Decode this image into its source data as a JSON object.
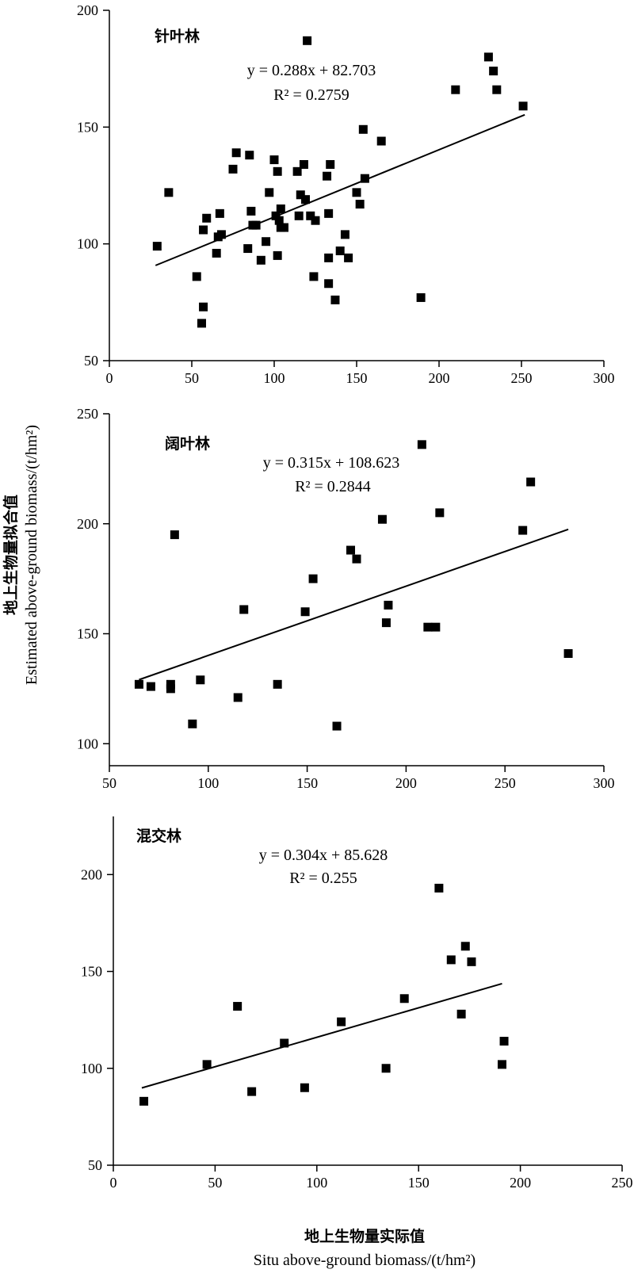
{
  "figure": {
    "ylabel_cn": "地上生物量拟合值",
    "ylabel_en": "Estimated  above-ground biomass/(t/hm²)",
    "xlabel_cn": "地上生物量实际值",
    "xlabel_en": "Situ  above-ground biomass/(t/hm²)"
  },
  "chart_data": [
    {
      "type": "scatter",
      "title": "针叶林",
      "equation": "y = 0.288x + 82.703",
      "r2": "R² = 0.2759",
      "xlim": [
        0,
        300
      ],
      "ylim": [
        50,
        200
      ],
      "xticks": [
        0,
        50,
        100,
        150,
        200,
        250,
        300
      ],
      "yticks": [
        50,
        100,
        150,
        200
      ],
      "xtick_labels": [
        "0",
        "50",
        "100",
        "150",
        "200",
        "250",
        "300"
      ],
      "ytick_labels": [
        "50",
        "100",
        "150",
        "200"
      ],
      "trend": {
        "slope": 0.288,
        "intercept": 82.703,
        "x_range": [
          28,
          252
        ]
      },
      "points": [
        [
          29,
          99
        ],
        [
          36,
          122
        ],
        [
          56,
          66
        ],
        [
          57,
          73
        ],
        [
          57,
          106
        ],
        [
          59,
          111
        ],
        [
          53,
          86
        ],
        [
          65,
          96
        ],
        [
          66,
          103
        ],
        [
          67,
          113
        ],
        [
          68,
          104
        ],
        [
          75,
          132
        ],
        [
          77,
          139
        ],
        [
          84,
          98
        ],
        [
          85,
          138
        ],
        [
          86,
          114
        ],
        [
          87,
          108
        ],
        [
          89,
          108
        ],
        [
          92,
          93
        ],
        [
          95,
          101
        ],
        [
          97,
          122
        ],
        [
          100,
          136
        ],
        [
          101,
          112
        ],
        [
          102,
          131
        ],
        [
          102,
          95
        ],
        [
          103,
          110
        ],
        [
          104,
          115
        ],
        [
          104,
          107
        ],
        [
          106,
          107
        ],
        [
          114,
          131
        ],
        [
          115,
          112
        ],
        [
          116,
          121
        ],
        [
          118,
          134
        ],
        [
          119,
          119
        ],
        [
          120,
          187
        ],
        [
          122,
          112
        ],
        [
          124,
          86
        ],
        [
          125,
          110
        ],
        [
          132,
          129
        ],
        [
          133,
          113
        ],
        [
          133,
          83
        ],
        [
          133,
          94
        ],
        [
          134,
          134
        ],
        [
          137,
          76
        ],
        [
          140,
          97
        ],
        [
          143,
          104
        ],
        [
          145,
          94
        ],
        [
          150,
          122
        ],
        [
          152,
          117
        ],
        [
          154,
          149
        ],
        [
          155,
          128
        ],
        [
          165,
          144
        ],
        [
          189,
          77
        ],
        [
          210,
          166
        ],
        [
          230,
          180
        ],
        [
          233,
          174
        ],
        [
          235,
          166
        ],
        [
          251,
          159
        ]
      ]
    },
    {
      "type": "scatter",
      "title": "阔叶林",
      "equation": "y = 0.315x + 108.623",
      "r2": "R² = 0.2844",
      "xlim": [
        50,
        300
      ],
      "ylim": [
        90,
        250
      ],
      "xticks": [
        50,
        100,
        150,
        200,
        250,
        300
      ],
      "yticks": [
        100,
        150,
        200,
        250
      ],
      "xtick_labels": [
        "50",
        "100",
        "150",
        "200",
        "250",
        "300"
      ],
      "ytick_labels": [
        "100",
        "150",
        "200",
        "250"
      ],
      "trend": {
        "slope": 0.315,
        "intercept": 108.623,
        "x_range": [
          65,
          282
        ]
      },
      "points": [
        [
          65,
          127
        ],
        [
          71,
          126
        ],
        [
          81,
          125
        ],
        [
          81,
          127
        ],
        [
          83,
          195
        ],
        [
          92,
          109
        ],
        [
          96,
          129
        ],
        [
          115,
          121
        ],
        [
          118,
          161
        ],
        [
          135,
          127
        ],
        [
          149,
          160
        ],
        [
          153,
          175
        ],
        [
          165,
          108
        ],
        [
          172,
          188
        ],
        [
          175,
          184
        ],
        [
          188,
          202
        ],
        [
          190,
          155
        ],
        [
          191,
          163
        ],
        [
          208,
          236
        ],
        [
          211,
          153
        ],
        [
          215,
          153
        ],
        [
          217,
          205
        ],
        [
          259,
          197
        ],
        [
          263,
          219
        ],
        [
          282,
          141
        ]
      ]
    },
    {
      "type": "scatter",
      "title": "混交林",
      "equation": "y = 0.304x + 85.628",
      "r2": "R² = 0.255",
      "xlim": [
        0,
        250
      ],
      "ylim": [
        50,
        230
      ],
      "xticks": [
        0,
        50,
        100,
        150,
        200,
        250
      ],
      "yticks": [
        50,
        100,
        150,
        200
      ],
      "xtick_labels": [
        "0",
        "50",
        "100",
        "150",
        "200",
        "250"
      ],
      "ytick_labels": [
        "50",
        "100",
        "150",
        "200"
      ],
      "trend": {
        "slope": 0.304,
        "intercept": 85.628,
        "x_range": [
          14,
          191
        ]
      },
      "points": [
        [
          15,
          83
        ],
        [
          46,
          102
        ],
        [
          61,
          132
        ],
        [
          68,
          88
        ],
        [
          84,
          113
        ],
        [
          94,
          90
        ],
        [
          112,
          124
        ],
        [
          134,
          100
        ],
        [
          143,
          136
        ],
        [
          160,
          193
        ],
        [
          166,
          156
        ],
        [
          171,
          128
        ],
        [
          173,
          163
        ],
        [
          176,
          155
        ],
        [
          191,
          102
        ],
        [
          192,
          114
        ]
      ]
    }
  ]
}
